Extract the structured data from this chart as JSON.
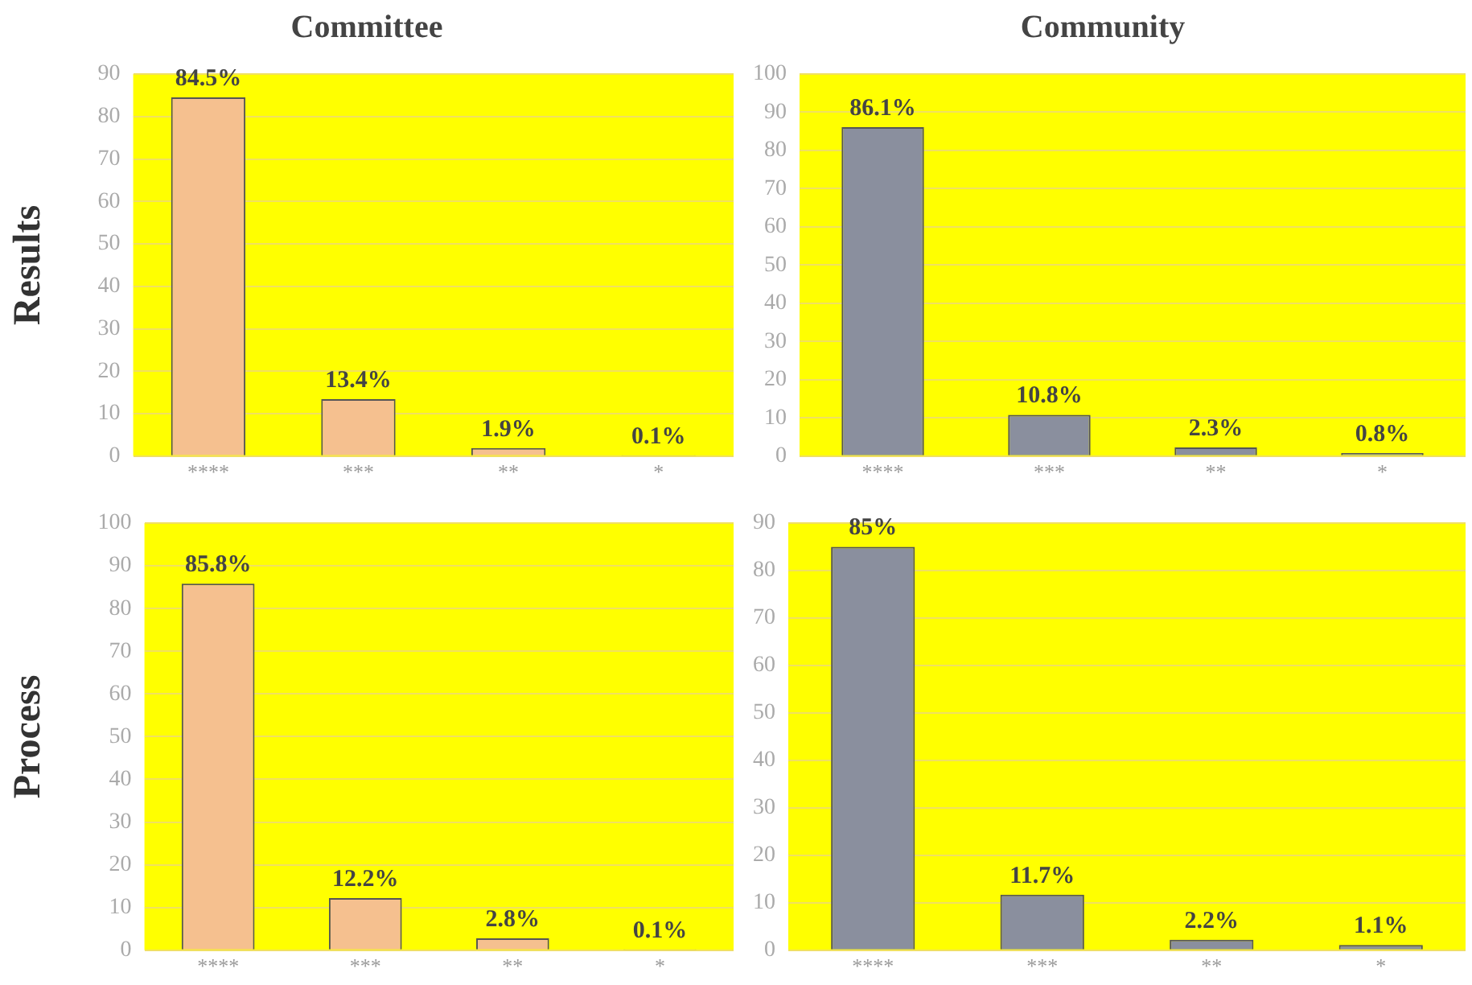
{
  "chart_data": [
    {
      "type": "bar",
      "title": "Committee",
      "ylabel": "Results",
      "categories": [
        "****",
        "***",
        "**",
        "*"
      ],
      "values": [
        84.5,
        13.4,
        1.9,
        0.1
      ],
      "value_labels": [
        "84.5%",
        "13.4%",
        "1.9%",
        "0.1%"
      ],
      "color": "#f5c08f",
      "ylim": [
        0,
        90
      ],
      "yticks": [
        0,
        10,
        20,
        30,
        40,
        50,
        60,
        70,
        80,
        90
      ],
      "grid": "y",
      "legend": false
    },
    {
      "type": "bar",
      "title": "Community",
      "categories": [
        "****",
        "***",
        "**",
        "*"
      ],
      "values": [
        86.1,
        10.8,
        2.3,
        0.8
      ],
      "value_labels": [
        "86.1%",
        "10.8%",
        "2.3%",
        "0.8%"
      ],
      "color": "#8a8f9e",
      "ylim": [
        0,
        100
      ],
      "yticks": [
        0,
        10,
        20,
        30,
        40,
        50,
        60,
        70,
        80,
        90,
        100
      ],
      "grid": "y",
      "legend": false
    },
    {
      "type": "bar",
      "ylabel": "Process",
      "categories": [
        "****",
        "***",
        "**",
        "*"
      ],
      "values": [
        85.8,
        12.2,
        2.8,
        0.1
      ],
      "value_labels": [
        "85.8%",
        "12.2%",
        "2.8%",
        "0.1%"
      ],
      "color": "#f5c08f",
      "ylim": [
        0,
        100
      ],
      "yticks": [
        0,
        10,
        20,
        30,
        40,
        50,
        60,
        70,
        80,
        90,
        100
      ],
      "grid": "y",
      "legend": false
    },
    {
      "type": "bar",
      "categories": [
        "****",
        "***",
        "**",
        "*"
      ],
      "values": [
        85,
        11.7,
        2.2,
        1.1
      ],
      "value_labels": [
        "85%",
        "11.7%",
        "2.2%",
        "1.1%"
      ],
      "color": "#8a8f9e",
      "ylim": [
        0,
        90
      ],
      "yticks": [
        0,
        10,
        20,
        30,
        40,
        50,
        60,
        70,
        80,
        90
      ],
      "grid": "y",
      "legend": false
    }
  ]
}
